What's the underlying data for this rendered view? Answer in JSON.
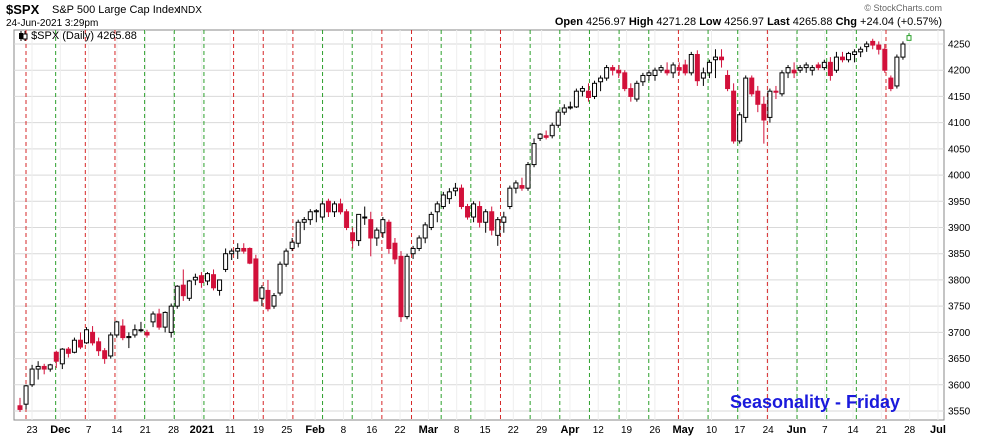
{
  "header": {
    "ticker": "$SPX",
    "description": "S&P 500 Large Cap Index",
    "exchange": "INDX",
    "datetime": "24-Jun-2021 3:29pm",
    "open_label": "Open",
    "open": "4256.97",
    "high_label": "High",
    "high": "4271.28",
    "low_label": "Low",
    "low": "4256.97",
    "last_label": "Last",
    "last": "4265.88",
    "chg_label": "Chg",
    "chg": "+24.04 (+0.57%)",
    "watermark": "© StockCharts.com"
  },
  "legend": {
    "text": "$SPX (Daily) 4265.88"
  },
  "overlay": {
    "text": "Seasonality - Friday",
    "color": "#1a1adc"
  },
  "colors": {
    "up": "#000000",
    "down": "#d2103a",
    "last_up": "#2aa02a",
    "friday_up": "#2ca02c",
    "friday_down": "#d62728",
    "grid": "#d9d9d9"
  },
  "chart_data": {
    "type": "candlestick",
    "ylim": [
      3530,
      4280
    ],
    "y_ticks": [
      3550,
      3600,
      3650,
      3700,
      3750,
      3800,
      3850,
      3900,
      3950,
      4000,
      4050,
      4100,
      4150,
      4200,
      4250
    ],
    "x_ticks": [
      {
        "label": "23",
        "bold": false
      },
      {
        "label": "Dec",
        "bold": true
      },
      {
        "label": "7",
        "bold": false
      },
      {
        "label": "14",
        "bold": false
      },
      {
        "label": "21",
        "bold": false
      },
      {
        "label": "28",
        "bold": false
      },
      {
        "label": "2021",
        "bold": true
      },
      {
        "label": "11",
        "bold": false
      },
      {
        "label": "19",
        "bold": false
      },
      {
        "label": "25",
        "bold": false
      },
      {
        "label": "Feb",
        "bold": true
      },
      {
        "label": "8",
        "bold": false
      },
      {
        "label": "16",
        "bold": false
      },
      {
        "label": "22",
        "bold": false
      },
      {
        "label": "Mar",
        "bold": true
      },
      {
        "label": "8",
        "bold": false
      },
      {
        "label": "15",
        "bold": false
      },
      {
        "label": "22",
        "bold": false
      },
      {
        "label": "29",
        "bold": false
      },
      {
        "label": "Apr",
        "bold": true
      },
      {
        "label": "12",
        "bold": false
      },
      {
        "label": "19",
        "bold": false
      },
      {
        "label": "26",
        "bold": false
      },
      {
        "label": "May",
        "bold": true
      },
      {
        "label": "10",
        "bold": false
      },
      {
        "label": "17",
        "bold": false
      },
      {
        "label": "24",
        "bold": false
      },
      {
        "label": "Jun",
        "bold": true
      },
      {
        "label": "7",
        "bold": false
      },
      {
        "label": "14",
        "bold": false
      },
      {
        "label": "21",
        "bold": false
      },
      {
        "label": "28",
        "bold": false
      },
      {
        "label": "Jul",
        "bold": true
      }
    ],
    "friday_lines": [
      {
        "date": "Nov 27",
        "up": false
      },
      {
        "date": "Dec 4",
        "up": true
      },
      {
        "date": "Dec 11",
        "up": false
      },
      {
        "date": "Dec 18",
        "up": false
      },
      {
        "date": "Dec 24",
        "up": true
      },
      {
        "date": "Dec 31",
        "up": true
      },
      {
        "date": "Jan 8",
        "up": true
      },
      {
        "date": "Jan 15",
        "up": false
      },
      {
        "date": "Jan 22",
        "up": false
      },
      {
        "date": "Jan 29",
        "up": false
      },
      {
        "date": "Feb 5",
        "up": true
      },
      {
        "date": "Feb 12",
        "up": true
      },
      {
        "date": "Feb 19",
        "up": false
      },
      {
        "date": "Feb 26",
        "up": false
      },
      {
        "date": "Mar 5",
        "up": true
      },
      {
        "date": "Mar 12",
        "up": true
      },
      {
        "date": "Mar 19",
        "up": false
      },
      {
        "date": "Mar 26",
        "up": true
      },
      {
        "date": "Apr 1",
        "up": true
      },
      {
        "date": "Apr 9",
        "up": true
      },
      {
        "date": "Apr 16",
        "up": true
      },
      {
        "date": "Apr 23",
        "up": true
      },
      {
        "date": "Apr 30",
        "up": false
      },
      {
        "date": "May 7",
        "up": true
      },
      {
        "date": "May 14",
        "up": true
      },
      {
        "date": "May 21",
        "up": false
      },
      {
        "date": "May 28",
        "up": true
      },
      {
        "date": "Jun 4",
        "up": true
      },
      {
        "date": "Jun 11",
        "up": true
      },
      {
        "date": "Jun 18",
        "up": false
      }
    ],
    "candles": [
      [
        3560,
        3575,
        3548,
        3553
      ],
      [
        3563,
        3600,
        3553,
        3598
      ],
      [
        3600,
        3638,
        3596,
        3630
      ],
      [
        3630,
        3645,
        3610,
        3635
      ],
      [
        3635,
        3640,
        3620,
        3630
      ],
      [
        3630,
        3640,
        3625,
        3638
      ],
      [
        3662,
        3665,
        3632,
        3645
      ],
      [
        3640,
        3670,
        3630,
        3668
      ],
      [
        3668,
        3672,
        3652,
        3660
      ],
      [
        3662,
        3690,
        3660,
        3685
      ],
      [
        3685,
        3700,
        3668,
        3672
      ],
      [
        3680,
        3710,
        3678,
        3705
      ],
      [
        3700,
        3712,
        3675,
        3680
      ],
      [
        3682,
        3690,
        3655,
        3665
      ],
      [
        3665,
        3670,
        3640,
        3650
      ],
      [
        3655,
        3700,
        3650,
        3695
      ],
      [
        3695,
        3722,
        3690,
        3720
      ],
      [
        3712,
        3725,
        3685,
        3690
      ],
      [
        3690,
        3700,
        3670,
        3692
      ],
      [
        3695,
        3715,
        3690,
        3705
      ],
      [
        3705,
        3720,
        3700,
        3705
      ],
      [
        3700,
        3705,
        3690,
        3695
      ],
      [
        3720,
        3740,
        3710,
        3735
      ],
      [
        3735,
        3745,
        3705,
        3710
      ],
      [
        3710,
        3740,
        3700,
        3738
      ],
      [
        3700,
        3755,
        3690,
        3750
      ],
      [
        3750,
        3790,
        3745,
        3788
      ],
      [
        3790,
        3820,
        3760,
        3770
      ],
      [
        3765,
        3800,
        3760,
        3798
      ],
      [
        3800,
        3812,
        3790,
        3805
      ],
      [
        3808,
        3815,
        3785,
        3795
      ],
      [
        3798,
        3815,
        3790,
        3812
      ],
      [
        3810,
        3820,
        3780,
        3785
      ],
      [
        3780,
        3800,
        3770,
        3800
      ],
      [
        3820,
        3860,
        3815,
        3850
      ],
      [
        3850,
        3860,
        3838,
        3855
      ],
      [
        3855,
        3870,
        3840,
        3860
      ],
      [
        3860,
        3870,
        3850,
        3855
      ],
      [
        3860,
        3862,
        3830,
        3832
      ],
      [
        3840,
        3848,
        3760,
        3760
      ],
      [
        3765,
        3790,
        3750,
        3785
      ],
      [
        3780,
        3800,
        3740,
        3745
      ],
      [
        3750,
        3775,
        3745,
        3770
      ],
      [
        3775,
        3835,
        3770,
        3830
      ],
      [
        3830,
        3860,
        3825,
        3855
      ],
      [
        3860,
        3880,
        3855,
        3872
      ],
      [
        3870,
        3915,
        3862,
        3910
      ],
      [
        3910,
        3920,
        3895,
        3915
      ],
      [
        3915,
        3935,
        3905,
        3930
      ],
      [
        3930,
        3935,
        3910,
        3932
      ],
      [
        3920,
        3950,
        3915,
        3945
      ],
      [
        3950,
        3955,
        3920,
        3930
      ],
      [
        3930,
        3950,
        3920,
        3945
      ],
      [
        3945,
        3955,
        3925,
        3930
      ],
      [
        3930,
        3935,
        3895,
        3900
      ],
      [
        3890,
        3900,
        3860,
        3875
      ],
      [
        3875,
        3925,
        3865,
        3925
      ],
      [
        3920,
        3940,
        3905,
        3920
      ],
      [
        3915,
        3930,
        3845,
        3880
      ],
      [
        3880,
        3900,
        3865,
        3895
      ],
      [
        3890,
        3920,
        3880,
        3915
      ],
      [
        3910,
        3915,
        3850,
        3860
      ],
      [
        3870,
        3880,
        3830,
        3840
      ],
      [
        3845,
        3855,
        3720,
        3730
      ],
      [
        3730,
        3850,
        3725,
        3845
      ],
      [
        3850,
        3865,
        3840,
        3860
      ],
      [
        3860,
        3885,
        3855,
        3880
      ],
      [
        3880,
        3910,
        3870,
        3905
      ],
      [
        3900,
        3930,
        3895,
        3925
      ],
      [
        3930,
        3950,
        3910,
        3945
      ],
      [
        3940,
        3968,
        3935,
        3962
      ],
      [
        3955,
        3975,
        3945,
        3968
      ],
      [
        3970,
        3985,
        3960,
        3975
      ],
      [
        3975,
        3982,
        3935,
        3940
      ],
      [
        3940,
        3945,
        3915,
        3920
      ],
      [
        3920,
        3950,
        3910,
        3945
      ],
      [
        3940,
        3950,
        3900,
        3910
      ],
      [
        3910,
        3935,
        3890,
        3930
      ],
      [
        3930,
        3940,
        3885,
        3895
      ],
      [
        3885,
        3920,
        3865,
        3915
      ],
      [
        3910,
        3930,
        3890,
        3920
      ],
      [
        3940,
        3980,
        3935,
        3975
      ],
      [
        3975,
        3990,
        3965,
        3985
      ],
      [
        3980,
        3995,
        3970,
        3975
      ],
      [
        3975,
        4025,
        3970,
        4020
      ],
      [
        4020,
        4070,
        4015,
        4060
      ],
      [
        4070,
        4080,
        4065,
        4078
      ],
      [
        4075,
        4085,
        4068,
        4072
      ],
      [
        4075,
        4100,
        4070,
        4095
      ],
      [
        4095,
        4125,
        4090,
        4120
      ],
      [
        4120,
        4135,
        4115,
        4128
      ],
      [
        4128,
        4140,
        4125,
        4130
      ],
      [
        4130,
        4165,
        4128,
        4160
      ],
      [
        4160,
        4170,
        4150,
        4165
      ],
      [
        4160,
        4175,
        4140,
        4148
      ],
      [
        4150,
        4180,
        4145,
        4175
      ],
      [
        4178,
        4190,
        4160,
        4185
      ],
      [
        4185,
        4210,
        4180,
        4205
      ],
      [
        4205,
        4210,
        4190,
        4200
      ],
      [
        4200,
        4210,
        4185,
        4195
      ],
      [
        4195,
        4200,
        4160,
        4165
      ],
      [
        4165,
        4175,
        4140,
        4150
      ],
      [
        4145,
        4180,
        4140,
        4175
      ],
      [
        4178,
        4195,
        4170,
        4190
      ],
      [
        4190,
        4200,
        4180,
        4195
      ],
      [
        4190,
        4205,
        4180,
        4200
      ],
      [
        4200,
        4210,
        4195,
        4205
      ],
      [
        4200,
        4215,
        4190,
        4195
      ],
      [
        4195,
        4215,
        4185,
        4210
      ],
      [
        4205,
        4215,
        4190,
        4200
      ],
      [
        4210,
        4220,
        4190,
        4195
      ],
      [
        4195,
        4235,
        4190,
        4230
      ],
      [
        4230,
        4238,
        4170,
        4180
      ],
      [
        4185,
        4205,
        4170,
        4195
      ],
      [
        4195,
        4220,
        4185,
        4215
      ],
      [
        4220,
        4240,
        4185,
        4225
      ],
      [
        4225,
        4240,
        4205,
        4220
      ],
      [
        4190,
        4200,
        4160,
        4165
      ],
      [
        4160,
        4175,
        4060,
        4065
      ],
      [
        4065,
        4120,
        4060,
        4115
      ],
      [
        4110,
        4190,
        4100,
        4185
      ],
      [
        4185,
        4190,
        4150,
        4155
      ],
      [
        4160,
        4170,
        4120,
        4135
      ],
      [
        4135,
        4150,
        4060,
        4105
      ],
      [
        4110,
        4165,
        4100,
        4160
      ],
      [
        4160,
        4170,
        4145,
        4158
      ],
      [
        4155,
        4200,
        4150,
        4195
      ],
      [
        4195,
        4210,
        4185,
        4205
      ],
      [
        4200,
        4215,
        4185,
        4195
      ],
      [
        4200,
        4210,
        4195,
        4205
      ],
      [
        4205,
        4215,
        4195,
        4210
      ],
      [
        4200,
        4210,
        4190,
        4205
      ],
      [
        4210,
        4215,
        4200,
        4205
      ],
      [
        4205,
        4220,
        4200,
        4215
      ],
      [
        4215,
        4225,
        4180,
        4190
      ],
      [
        4200,
        4235,
        4195,
        4225
      ],
      [
        4225,
        4235,
        4215,
        4220
      ],
      [
        4220,
        4235,
        4215,
        4232
      ],
      [
        4230,
        4240,
        4215,
        4235
      ],
      [
        4235,
        4245,
        4225,
        4240
      ],
      [
        4245,
        4255,
        4235,
        4250
      ],
      [
        4255,
        4260,
        4240,
        4248
      ],
      [
        4248,
        4255,
        4230,
        4240
      ],
      [
        4240,
        4250,
        4195,
        4200
      ],
      [
        4185,
        4190,
        4160,
        4165
      ],
      [
        4170,
        4230,
        4165,
        4225
      ],
      [
        4225,
        4255,
        4220,
        4250
      ],
      [
        4257,
        4271,
        4257,
        4266
      ]
    ]
  }
}
